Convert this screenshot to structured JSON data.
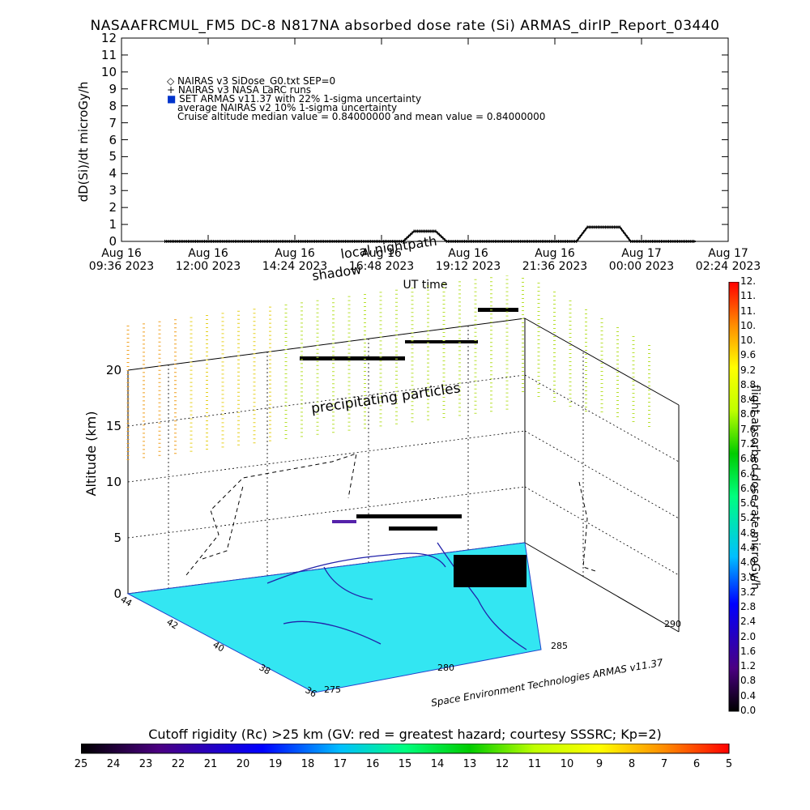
{
  "title": "NASAAFRCMUL_FM5 DC-8   N817NA absorbed dose rate (Si) ARMAS_dirIP_Report_03440",
  "legend": {
    "line1": "NAIRAS v3 SiDose_G0.txt SEP=0",
    "line2": "NAIRAS v3 NASA LaRC runs",
    "line3": "SET ARMAS v11.37 with 22% 1-sigma uncertainty",
    "line4": "average NAIRAS v2 10% 1-sigma uncertainty",
    "line5": "Cruise altitude median value = 0.84000000 and mean value = 0.84000000"
  },
  "chart_data": [
    {
      "type": "line",
      "title": "NASAAFRCMUL_FM5 DC-8   N817NA absorbed dose rate (Si) ARMAS_dirIP_Report_03440",
      "ylabel": "dD(Si)/dt microGy/h",
      "xlabel": "UT time",
      "ylim": [
        0,
        12
      ],
      "y_ticks": [
        "0",
        "1",
        "2",
        "3",
        "4",
        "5",
        "6",
        "7",
        "8",
        "9",
        "10",
        "11",
        "12"
      ],
      "x_ticks": [
        {
          "line1": "Aug 16",
          "line2": "09:36 2023"
        },
        {
          "line1": "Aug 16",
          "line2": "12:00 2023"
        },
        {
          "line1": "Aug 16",
          "line2": "14:24 2023"
        },
        {
          "line1": "Aug 16",
          "line2": "16:48 2023"
        },
        {
          "line1": "Aug 16",
          "line2": "19:12 2023"
        },
        {
          "line1": "Aug 16",
          "line2": "21:36 2023"
        },
        {
          "line1": "Aug 17",
          "line2": "00:00 2023"
        },
        {
          "line1": "Aug 17",
          "line2": "02:24 2023"
        }
      ],
      "x_hours_range": [
        9.6,
        26.4
      ],
      "annotations": [
        "local nightpath",
        "shadow"
      ],
      "series": [
        {
          "name": "SET ARMAS v11.37 with 22% 1-sigma uncertainty",
          "x_hours": [
            10.8,
            17.4,
            17.7,
            18.3,
            18.6,
            22.2,
            22.5,
            23.4,
            23.7,
            25.5
          ],
          "values": [
            0.0,
            0.0,
            0.6,
            0.6,
            0.0,
            0.0,
            0.84,
            0.84,
            0.0,
            0.0
          ]
        }
      ]
    },
    {
      "type": "scatter",
      "title": "",
      "ylabel": "Altitude (km)",
      "zlim": [
        0,
        20
      ],
      "z_ticks": [
        "0",
        "5",
        "10",
        "15",
        "20"
      ],
      "lat_ticks": [
        "44",
        "42",
        "40",
        "38",
        "36"
      ],
      "lon_ticks": [
        "275",
        "280",
        "285",
        "290"
      ],
      "annotation": "precipitating particles",
      "credit": "Space Environment Technologies ARMAS v11.37",
      "colorbar_label": "flight absorbed dose rate microGy/h",
      "colorbar_ticks": [
        "0.0",
        "0.4",
        "0.8",
        "1.2",
        "1.6",
        "2.0",
        "2.4",
        "2.8",
        "3.2",
        "3.6",
        "4.0",
        "4.4",
        "4.8",
        "5.2",
        "5.6",
        "6.0",
        "6.4",
        "6.8",
        "7.2",
        "7.6",
        "8.0",
        "8.4",
        "8.8",
        "9.2",
        "9.6",
        "10.",
        "10.",
        "11.",
        "11.",
        "12."
      ],
      "cutoff_label": "Cutoff rigidity (Rc) >25 km (GV: red = greatest hazard; courtesy SSSRC; Kp=2)",
      "cutoff_ticks": [
        "25",
        "24",
        "23",
        "22",
        "21",
        "20",
        "19",
        "18",
        "17",
        "16",
        "15",
        "14",
        "13",
        "12",
        "11",
        "10",
        "9",
        "8",
        "7",
        "6",
        "5"
      ]
    }
  ]
}
